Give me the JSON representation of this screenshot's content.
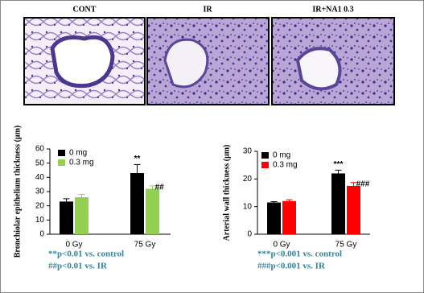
{
  "panels": [
    "CONT",
    "IR",
    "IR+NA1 0.3"
  ],
  "chart_data": [
    {
      "type": "bar",
      "y_label": "Bronchiolar epithelium thickness (μm)",
      "categories": [
        "0 Gy",
        "75 Gy"
      ],
      "series": [
        {
          "name": "0 mg",
          "color": "#000000",
          "values": [
            23,
            43
          ],
          "errors": [
            2,
            6
          ]
        },
        {
          "name": "0.3 mg",
          "color": "#92d050",
          "values": [
            26,
            32
          ],
          "errors": [
            2,
            2
          ]
        }
      ],
      "annotations": [
        "**",
        "##"
      ],
      "ylim": [
        0,
        60
      ],
      "yticks": [
        0,
        10,
        20,
        30,
        40,
        50,
        60
      ],
      "notes": [
        "**p<0.01 vs. control",
        "##p<0.01 vs. IR"
      ]
    },
    {
      "type": "bar",
      "y_label": "Arterial wall thickness (μm)",
      "categories": [
        "0 Gy",
        "75 Gy"
      ],
      "series": [
        {
          "name": "0 mg",
          "color": "#000000",
          "values": [
            11.5,
            22
          ],
          "errors": [
            0.3,
            1.2
          ]
        },
        {
          "name": "0.3 mg",
          "color": "#ff0000",
          "values": [
            12,
            17.5
          ],
          "errors": [
            0.5,
            1.2
          ]
        }
      ],
      "annotations": [
        "***",
        "###"
      ],
      "ylim": [
        0,
        30
      ],
      "yticks": [
        0,
        10,
        20,
        30
      ],
      "notes": [
        "***p<0.001 vs. control",
        "###p<0.001 vs. IR"
      ]
    }
  ]
}
